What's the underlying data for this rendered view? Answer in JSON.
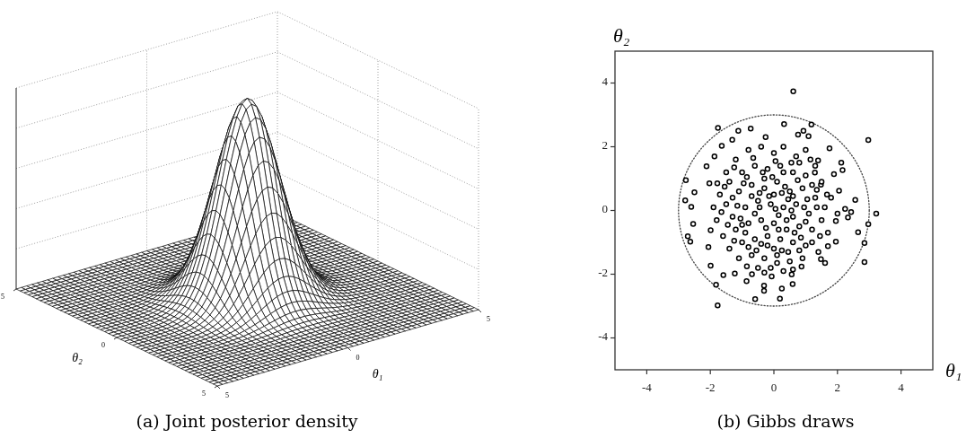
{
  "chart_data": [
    {
      "type": "other",
      "title": "(a) Joint posterior density",
      "xlabel": "θ₁",
      "ylabel": "θ₂",
      "annotations": [
        "5",
        "0",
        "5",
        "5",
        "0",
        "5"
      ]
    },
    {
      "type": "scatter",
      "title": "(b) Gibbs draws",
      "xlabel": "θ₁",
      "ylabel": "θ₂",
      "xlim": [
        -5,
        5
      ],
      "ylim": [
        -5,
        5
      ],
      "xticks": [
        -4,
        -2,
        0,
        2,
        4
      ],
      "yticks": [
        -4,
        -2,
        0,
        2,
        4
      ],
      "series": [
        {
          "type": "scatter",
          "color": "#000000",
          "marker": "circle",
          "x": [
            0.61,
            2.97,
            3.22,
            -1.77,
            -1.76,
            1.18,
            0.32,
            -2.77,
            -2.79,
            -2.5,
            -2.6,
            -2.54,
            -2.71,
            -2.63,
            -1.82,
            -0.59,
            0.19,
            0.59,
            0.25,
            -0.31,
            -0.31,
            2.85,
            2.85,
            2.97,
            2.65,
            2.56,
            2.16,
            2.12,
            1.75,
            1.89,
            1.09,
            0.76,
            0.93,
            -0.26,
            -0.73,
            -1.12,
            -1.31,
            -1.64,
            -1.87,
            -2.12,
            -2.03,
            -1.78,
            -1.99,
            -2.06,
            -1.99,
            -1.59,
            -1.23,
            -0.86,
            -0.69,
            -0.07,
            0.56,
            0.87,
            1.48,
            1.61,
            1.95,
            1.7,
            1.95,
            2.43,
            2.33,
            2.24,
            2.05,
            1.67,
            1.48,
            1.29,
            1.39,
            -1.5,
            -1.2,
            -0.8,
            -0.4,
            0.0,
            0.3,
            0.7,
            1.0,
            1.3,
            -1.7,
            -1.4,
            -1.0,
            -0.6,
            -0.2,
            0.2,
            0.6,
            1.0,
            1.5,
            1.8,
            -1.9,
            -1.5,
            -1.1,
            -0.7,
            -0.3,
            0.1,
            0.5,
            0.9,
            1.3,
            1.6,
            -1.8,
            -1.3,
            -0.9,
            -0.5,
            -0.1,
            0.3,
            0.7,
            1.1,
            1.5,
            2.0,
            -1.6,
            -1.2,
            -0.8,
            -0.4,
            0.0,
            0.4,
            0.8,
            1.2,
            1.7,
            -1.4,
            -1.0,
            -0.6,
            -0.2,
            0.2,
            0.6,
            1.0,
            1.4,
            -1.1,
            -0.7,
            -0.3,
            0.1,
            0.5,
            0.9,
            -0.5,
            -0.1,
            0.3,
            -0.3,
            0.4,
            -0.9,
            0.8,
            -1.3,
            1.2,
            0.0,
            -0.6,
            0.6,
            -0.2,
            0.3,
            -0.45,
            0.15,
            -0.15,
            0.45,
            -0.85,
            1.05,
            -1.05,
            0.25,
            -0.55,
            0.85,
            -1.25,
            -0.65,
            0.05,
            0.55,
            1.15,
            -1.55,
            -0.95,
            -0.35,
            0.35,
            0.75,
            1.35,
            -1.65,
            -1.15,
            -0.45,
            0.05,
            0.55,
            0.95,
            1.35,
            -1.45,
            -1.0,
            -0.25,
            0.15,
            0.65,
            1.0,
            1.45,
            -1.25,
            -0.8,
            -0.4,
            0.0,
            0.45,
            0.8,
            1.2,
            -0.85,
            -0.3,
            0.1,
            0.6,
            -0.05,
            0.6,
            -0.7,
            0.25
          ],
          "values": [
            3.74,
            2.21,
            -0.1,
            -2.98,
            2.59,
            2.7,
            2.71,
            0.95,
            0.32,
            0.57,
            0.11,
            -0.42,
            -0.81,
            -0.98,
            -2.33,
            -2.78,
            -2.77,
            -2.31,
            -2.45,
            -2.36,
            -2.52,
            -1.62,
            -1.02,
            -0.43,
            -0.68,
            0.33,
            1.27,
            1.5,
            1.95,
            1.14,
            2.33,
            2.38,
            2.5,
            2.3,
            2.57,
            2.5,
            2.22,
            2.03,
            1.7,
            1.39,
            0.85,
            0.85,
            -0.62,
            -1.15,
            -1.73,
            -2.03,
            -1.98,
            -2.22,
            -2.0,
            -2.07,
            -2.01,
            -1.76,
            -1.53,
            -1.65,
            -0.98,
            -1.12,
            -0.33,
            -0.05,
            -0.22,
            0.05,
            0.62,
            0.5,
            0.81,
            1.19,
            1.57,
            1.2,
            1.6,
            1.9,
            2.0,
            1.8,
            2.0,
            1.7,
            1.9,
            1.4,
            0.5,
            0.9,
            1.2,
            1.4,
            1.3,
            1.4,
            1.2,
            1.1,
            0.9,
            0.4,
            0.1,
            0.2,
            0.6,
            0.8,
            0.7,
            0.9,
            0.6,
            0.7,
            0.4,
            0.1,
            -0.3,
            -0.2,
            0.1,
            0.3,
            0.2,
            0.1,
            0.2,
            -0.1,
            -0.3,
            -0.1,
            -0.8,
            -0.6,
            -0.4,
            -0.3,
            -0.4,
            -0.3,
            -0.5,
            -0.6,
            -0.7,
            -1.2,
            -1.0,
            -0.9,
            -0.8,
            -0.9,
            -1.0,
            -1.1,
            -1.3,
            -1.5,
            -1.4,
            -1.5,
            -1.4,
            -1.6,
            -1.5,
            -1.8,
            -1.8,
            -1.9,
            1.0,
            -0.6,
            -0.7,
            1.5,
            0.4,
            0.8,
            0.5,
            -0.1,
            -0.2,
            -1.1,
            1.2,
            0.55,
            -0.15,
            0.45,
            0.35,
            1.05,
            0.35,
            -0.25,
            -1.25,
            -1.25,
            -0.85,
            1.35,
            1.65,
            1.55,
            1.5,
            1.6,
            0.75,
            0.85,
            1.2,
            0.75,
            0.95,
            0.65,
            -0.05,
            0.15,
            0.1,
            0.05,
            0.0,
            0.1,
            0.1,
            -0.45,
            -0.45,
            -0.55,
            -0.6,
            -0.7,
            -0.35,
            -0.8,
            -0.95,
            -1.15,
            -1.05,
            -1.2,
            -1.3,
            -1.25,
            -1.0,
            -1.75,
            -1.95,
            -1.65,
            -1.85,
            1.05,
            0.45,
            0.45,
            0.55
          ]
        }
      ]
    }
  ]
}
